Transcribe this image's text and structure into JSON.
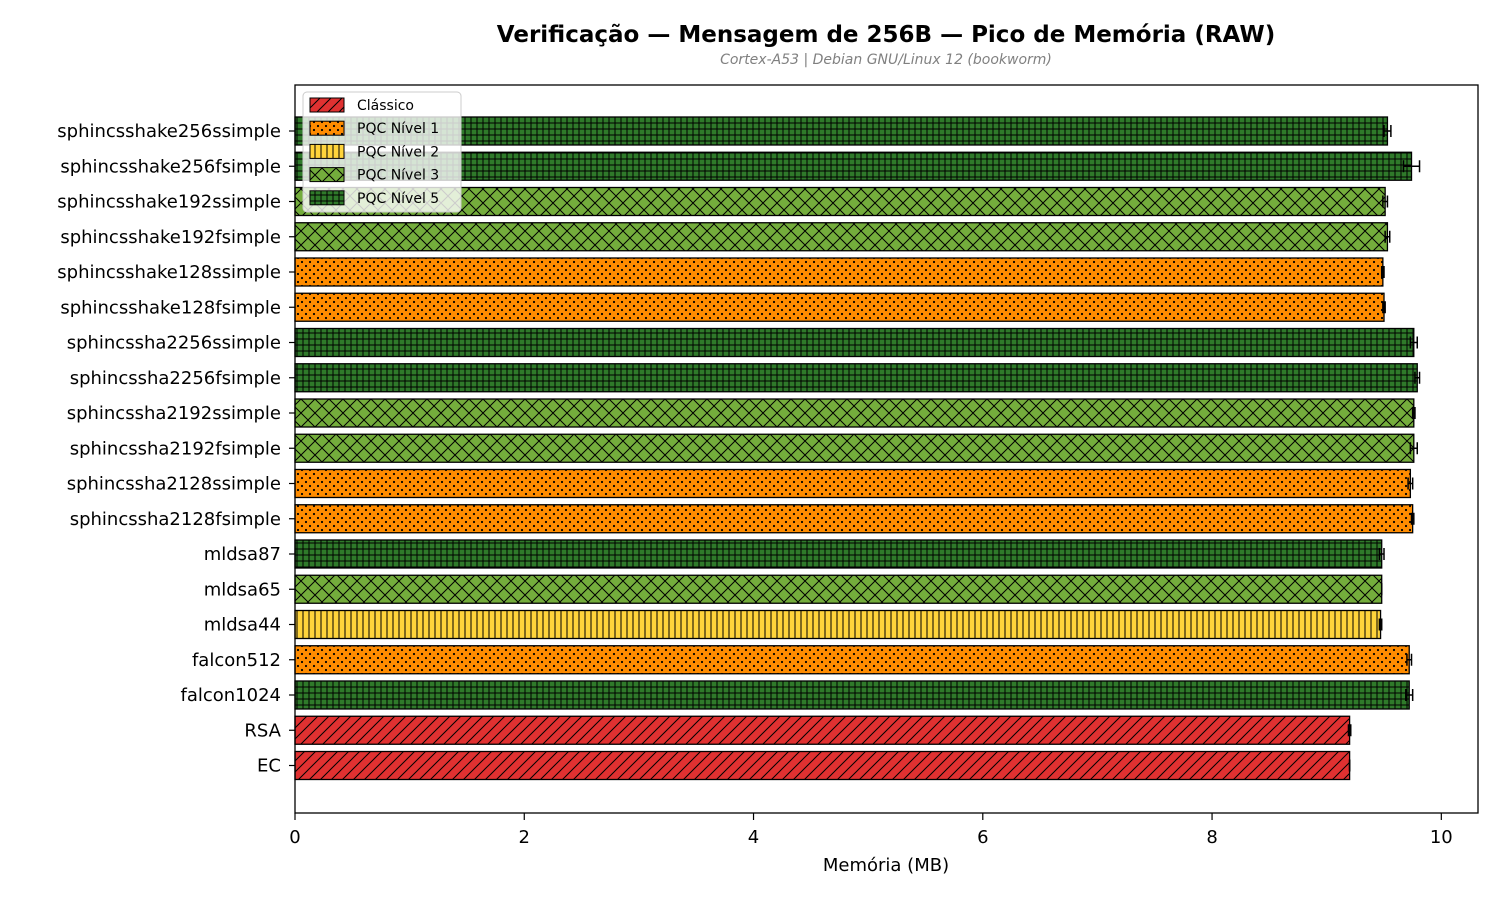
{
  "chart_data": {
    "type": "bar",
    "orientation": "horizontal",
    "title": "Verificação — Mensagem de 256B — Pico de Memória (RAW)",
    "subtitle": "Cortex-A53 | Debian GNU/Linux 12 (bookworm)",
    "xlabel": "Memória (MB)",
    "ylabel": "",
    "xlim": [
      0,
      10.32
    ],
    "xticks": [
      "0",
      "2",
      "4",
      "6",
      "8",
      "10"
    ],
    "grid": false,
    "legend_position": "top-left",
    "legend": [
      {
        "key": "classic",
        "label": "Clássico",
        "color": "#e03131",
        "pattern": "diagonal"
      },
      {
        "key": "pqc1",
        "label": "PQC Nível 1",
        "color": "#ff8c00",
        "pattern": "dots"
      },
      {
        "key": "pqc2",
        "label": "PQC Nível 2",
        "color": "#ffd43b",
        "pattern": "vertical"
      },
      {
        "key": "pqc3",
        "label": "PQC Nível 3",
        "color": "#74ad3c",
        "pattern": "cross"
      },
      {
        "key": "pqc5",
        "label": "PQC Nível 5",
        "color": "#2f7a2a",
        "pattern": "grid"
      }
    ],
    "bars": [
      {
        "label": "sphincsshake256ssimple",
        "value": 9.53,
        "error": 0.03,
        "group": "pqc5"
      },
      {
        "label": "sphincsshake256fsimple",
        "value": 9.74,
        "error": 0.07,
        "group": "pqc5"
      },
      {
        "label": "sphincsshake192ssimple",
        "value": 9.51,
        "error": 0.02,
        "group": "pqc3"
      },
      {
        "label": "sphincsshake192fsimple",
        "value": 9.53,
        "error": 0.02,
        "group": "pqc3"
      },
      {
        "label": "sphincsshake128ssimple",
        "value": 9.49,
        "error": 0.01,
        "group": "pqc1"
      },
      {
        "label": "sphincsshake128fsimple",
        "value": 9.5,
        "error": 0.01,
        "group": "pqc1"
      },
      {
        "label": "sphincssha2256ssimple",
        "value": 9.76,
        "error": 0.03,
        "group": "pqc5"
      },
      {
        "label": "sphincssha2256fsimple",
        "value": 9.79,
        "error": 0.02,
        "group": "pqc5"
      },
      {
        "label": "sphincssha2192ssimple",
        "value": 9.76,
        "error": 0.01,
        "group": "pqc3"
      },
      {
        "label": "sphincssha2192fsimple",
        "value": 9.76,
        "error": 0.03,
        "group": "pqc3"
      },
      {
        "label": "sphincssha2128ssimple",
        "value": 9.73,
        "error": 0.02,
        "group": "pqc1"
      },
      {
        "label": "sphincssha2128fsimple",
        "value": 9.75,
        "error": 0.01,
        "group": "pqc1"
      },
      {
        "label": "mldsa87",
        "value": 9.48,
        "error": 0.02,
        "group": "pqc5"
      },
      {
        "label": "mldsa65",
        "value": 9.48,
        "error": 0.0,
        "group": "pqc3"
      },
      {
        "label": "mldsa44",
        "value": 9.47,
        "error": 0.01,
        "group": "pqc2"
      },
      {
        "label": "falcon512",
        "value": 9.72,
        "error": 0.02,
        "group": "pqc1"
      },
      {
        "label": "falcon1024",
        "value": 9.72,
        "error": 0.03,
        "group": "pqc5"
      },
      {
        "label": "RSA",
        "value": 9.2,
        "error": 0.01,
        "group": "classic"
      },
      {
        "label": "EC",
        "value": 9.2,
        "error": 0.0,
        "group": "classic"
      }
    ]
  }
}
